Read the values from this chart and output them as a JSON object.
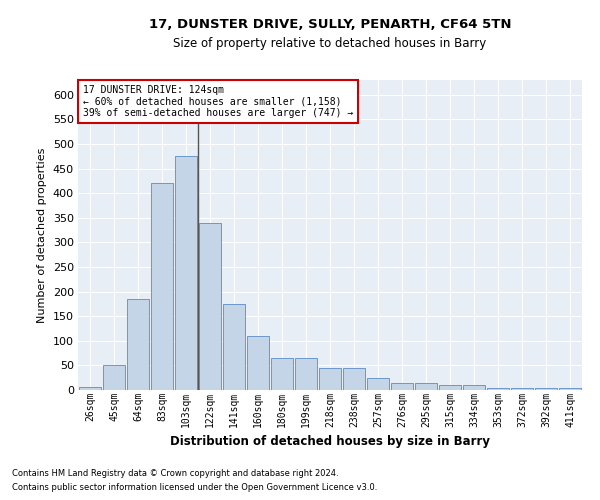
{
  "title1": "17, DUNSTER DRIVE, SULLY, PENARTH, CF64 5TN",
  "title2": "Size of property relative to detached houses in Barry",
  "xlabel": "Distribution of detached houses by size in Barry",
  "ylabel": "Number of detached properties",
  "footnote1": "Contains HM Land Registry data © Crown copyright and database right 2024.",
  "footnote2": "Contains public sector information licensed under the Open Government Licence v3.0.",
  "annotation_title": "17 DUNSTER DRIVE: 124sqm",
  "annotation_line2": "← 60% of detached houses are smaller (1,158)",
  "annotation_line3": "39% of semi-detached houses are larger (747) →",
  "bar_color": "#c5d5e8",
  "bar_edge_color": "#5b8ac5",
  "highlight_line_color": "#555555",
  "annotation_box_edgecolor": "#cc0000",
  "categories": [
    "26sqm",
    "45sqm",
    "64sqm",
    "83sqm",
    "103sqm",
    "122sqm",
    "141sqm",
    "160sqm",
    "180sqm",
    "199sqm",
    "218sqm",
    "238sqm",
    "257sqm",
    "276sqm",
    "295sqm",
    "315sqm",
    "334sqm",
    "353sqm",
    "372sqm",
    "392sqm",
    "411sqm"
  ],
  "values": [
    7,
    50,
    185,
    420,
    475,
    340,
    175,
    110,
    65,
    65,
    45,
    45,
    25,
    15,
    15,
    10,
    10,
    5,
    4,
    5,
    4
  ],
  "highlight_index": 5,
  "ylim": [
    0,
    630
  ],
  "yticks": [
    0,
    50,
    100,
    150,
    200,
    250,
    300,
    350,
    400,
    450,
    500,
    550,
    600
  ],
  "figsize": [
    6.0,
    5.0
  ],
  "dpi": 100
}
